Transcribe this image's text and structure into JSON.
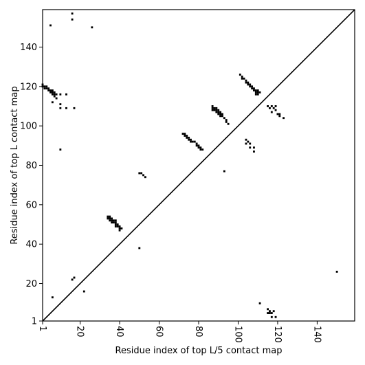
{
  "chart_data": {
    "type": "scatter",
    "title": "",
    "xlabel": "Residue index of top L/5 contact map",
    "ylabel": "Residue index of top L contact map",
    "xlim": [
      1,
      159
    ],
    "ylim": [
      1,
      159
    ],
    "x_ticks": [
      1,
      20,
      40,
      60,
      80,
      100,
      120,
      140
    ],
    "y_ticks": [
      1,
      20,
      40,
      60,
      80,
      100,
      120,
      140
    ],
    "diagonal": true,
    "grid": false,
    "marker": "square",
    "marker_color": "#000000",
    "series": [
      {
        "points": [
          [
            1,
            120
          ],
          [
            1,
            121
          ],
          [
            2,
            119
          ],
          [
            2,
            120
          ],
          [
            3,
            119
          ],
          [
            3,
            120
          ],
          [
            4,
            118
          ],
          [
            4,
            119
          ],
          [
            5,
            117
          ],
          [
            5,
            118
          ],
          [
            6,
            116
          ],
          [
            6,
            117
          ],
          [
            6,
            118
          ],
          [
            7,
            115
          ],
          [
            7,
            116
          ],
          [
            7,
            117
          ],
          [
            8,
            116
          ],
          [
            10,
            116
          ],
          [
            13,
            116
          ],
          [
            8,
            114
          ],
          [
            6,
            112
          ],
          [
            10,
            111
          ],
          [
            10,
            109
          ],
          [
            13,
            109
          ],
          [
            17,
            109
          ],
          [
            10,
            88
          ],
          [
            5,
            151
          ],
          [
            16,
            157
          ],
          [
            16,
            154
          ],
          [
            26,
            150
          ],
          [
            16,
            22
          ],
          [
            17,
            23
          ],
          [
            6,
            13
          ],
          [
            22,
            16
          ],
          [
            34,
            54
          ],
          [
            35,
            54
          ],
          [
            34,
            53
          ],
          [
            35,
            53
          ],
          [
            36,
            53
          ],
          [
            35,
            52
          ],
          [
            36,
            52
          ],
          [
            37,
            52
          ],
          [
            38,
            52
          ],
          [
            36,
            51
          ],
          [
            37,
            51
          ],
          [
            38,
            51
          ],
          [
            38,
            50
          ],
          [
            39,
            50
          ],
          [
            38,
            49
          ],
          [
            39,
            49
          ],
          [
            40,
            49
          ],
          [
            40,
            48
          ],
          [
            41,
            48
          ],
          [
            40,
            47
          ],
          [
            50,
            76
          ],
          [
            51,
            76
          ],
          [
            52,
            75
          ],
          [
            53,
            74
          ],
          [
            50,
            38
          ],
          [
            72,
            96
          ],
          [
            73,
            96
          ],
          [
            74,
            95
          ],
          [
            75,
            94
          ],
          [
            76,
            93
          ],
          [
            77,
            92
          ],
          [
            78,
            92
          ],
          [
            79,
            91
          ],
          [
            80,
            90
          ],
          [
            81,
            89
          ],
          [
            82,
            88
          ],
          [
            73,
            95
          ],
          [
            74,
            94
          ],
          [
            75,
            93
          ],
          [
            76,
            92
          ],
          [
            79,
            90
          ],
          [
            80,
            89
          ],
          [
            81,
            88
          ],
          [
            87,
            110
          ],
          [
            87,
            109
          ],
          [
            88,
            109
          ],
          [
            89,
            109
          ],
          [
            87,
            108
          ],
          [
            88,
            108
          ],
          [
            89,
            108
          ],
          [
            90,
            108
          ],
          [
            89,
            107
          ],
          [
            90,
            107
          ],
          [
            91,
            107
          ],
          [
            90,
            106
          ],
          [
            91,
            106
          ],
          [
            92,
            106
          ],
          [
            91,
            105
          ],
          [
            92,
            105
          ],
          [
            93,
            104
          ],
          [
            94,
            103
          ],
          [
            94,
            102
          ],
          [
            95,
            101
          ],
          [
            93,
            77
          ],
          [
            101,
            126
          ],
          [
            102,
            125
          ],
          [
            102,
            124
          ],
          [
            103,
            124
          ],
          [
            104,
            123
          ],
          [
            104,
            122
          ],
          [
            105,
            122
          ],
          [
            106,
            121
          ],
          [
            106,
            120
          ],
          [
            107,
            120
          ],
          [
            107,
            119
          ],
          [
            108,
            119
          ],
          [
            108,
            118
          ],
          [
            109,
            118
          ],
          [
            109,
            117
          ],
          [
            110,
            117
          ],
          [
            111,
            117
          ],
          [
            109,
            116
          ],
          [
            110,
            116
          ],
          [
            110,
            118
          ],
          [
            105,
            121
          ],
          [
            115,
            110
          ],
          [
            117,
            110
          ],
          [
            119,
            110
          ],
          [
            116,
            109
          ],
          [
            118,
            109
          ],
          [
            119,
            108
          ],
          [
            117,
            107
          ],
          [
            120,
            106
          ],
          [
            121,
            106
          ],
          [
            121,
            105
          ],
          [
            123,
            104
          ],
          [
            104,
            93
          ],
          [
            105,
            92
          ],
          [
            104,
            91
          ],
          [
            106,
            91
          ],
          [
            106,
            89
          ],
          [
            108,
            89
          ],
          [
            108,
            87
          ],
          [
            111,
            10
          ],
          [
            115,
            7
          ],
          [
            116,
            6
          ],
          [
            115,
            5
          ],
          [
            116,
            5
          ],
          [
            117,
            5
          ],
          [
            118,
            6
          ],
          [
            117,
            3
          ],
          [
            119,
            3
          ],
          [
            150,
            26
          ]
        ]
      }
    ]
  }
}
